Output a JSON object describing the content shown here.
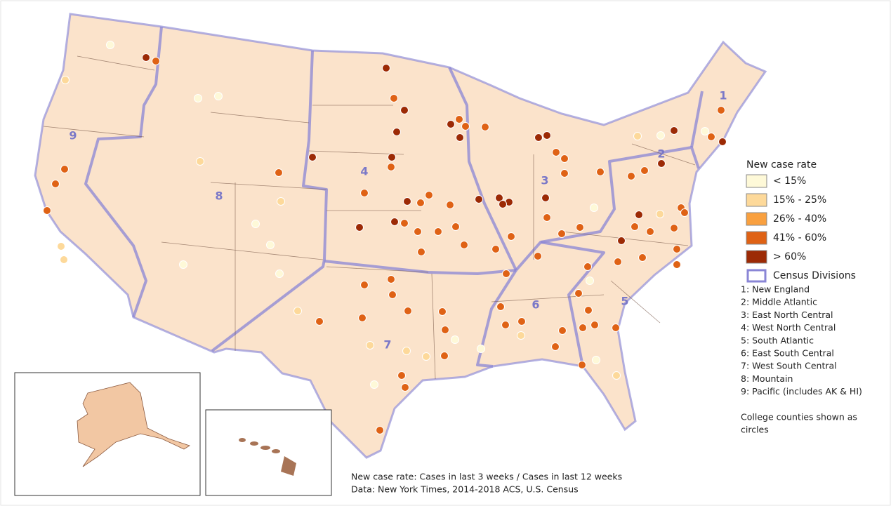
{
  "map_labels": [
    "1",
    "2",
    "3",
    "4",
    "5",
    "6",
    "7",
    "8",
    "9"
  ],
  "legend": {
    "title": "New case rate",
    "items": [
      {
        "label": "< 15%",
        "color": "#fef9d8"
      },
      {
        "label": "15% - 25%",
        "color": "#fdd99a"
      },
      {
        "label": "26% - 40%",
        "color": "#f9a03f"
      },
      {
        "label": "41% - 60%",
        "color": "#df6215"
      },
      {
        "label": "> 60%",
        "color": "#9c2a05"
      }
    ],
    "boundary_label": "Census Divisions"
  },
  "divisions": [
    "1: New England",
    "2: Middle Atlantic",
    "3: East North Central",
    "4: West North Central",
    "5: South Atlantic",
    "6: East South Central",
    "7: West South Central",
    "8: Mountain",
    "9: Pacific (includes AK & HI)"
  ],
  "note": [
    "College counties shown as",
    "circles"
  ],
  "footer": [
    "New case rate: Cases in last 3 weeks / Cases in last 12 weeks",
    "Data: New York Times, 2014-2018 ACS, U.S. Census"
  ]
}
